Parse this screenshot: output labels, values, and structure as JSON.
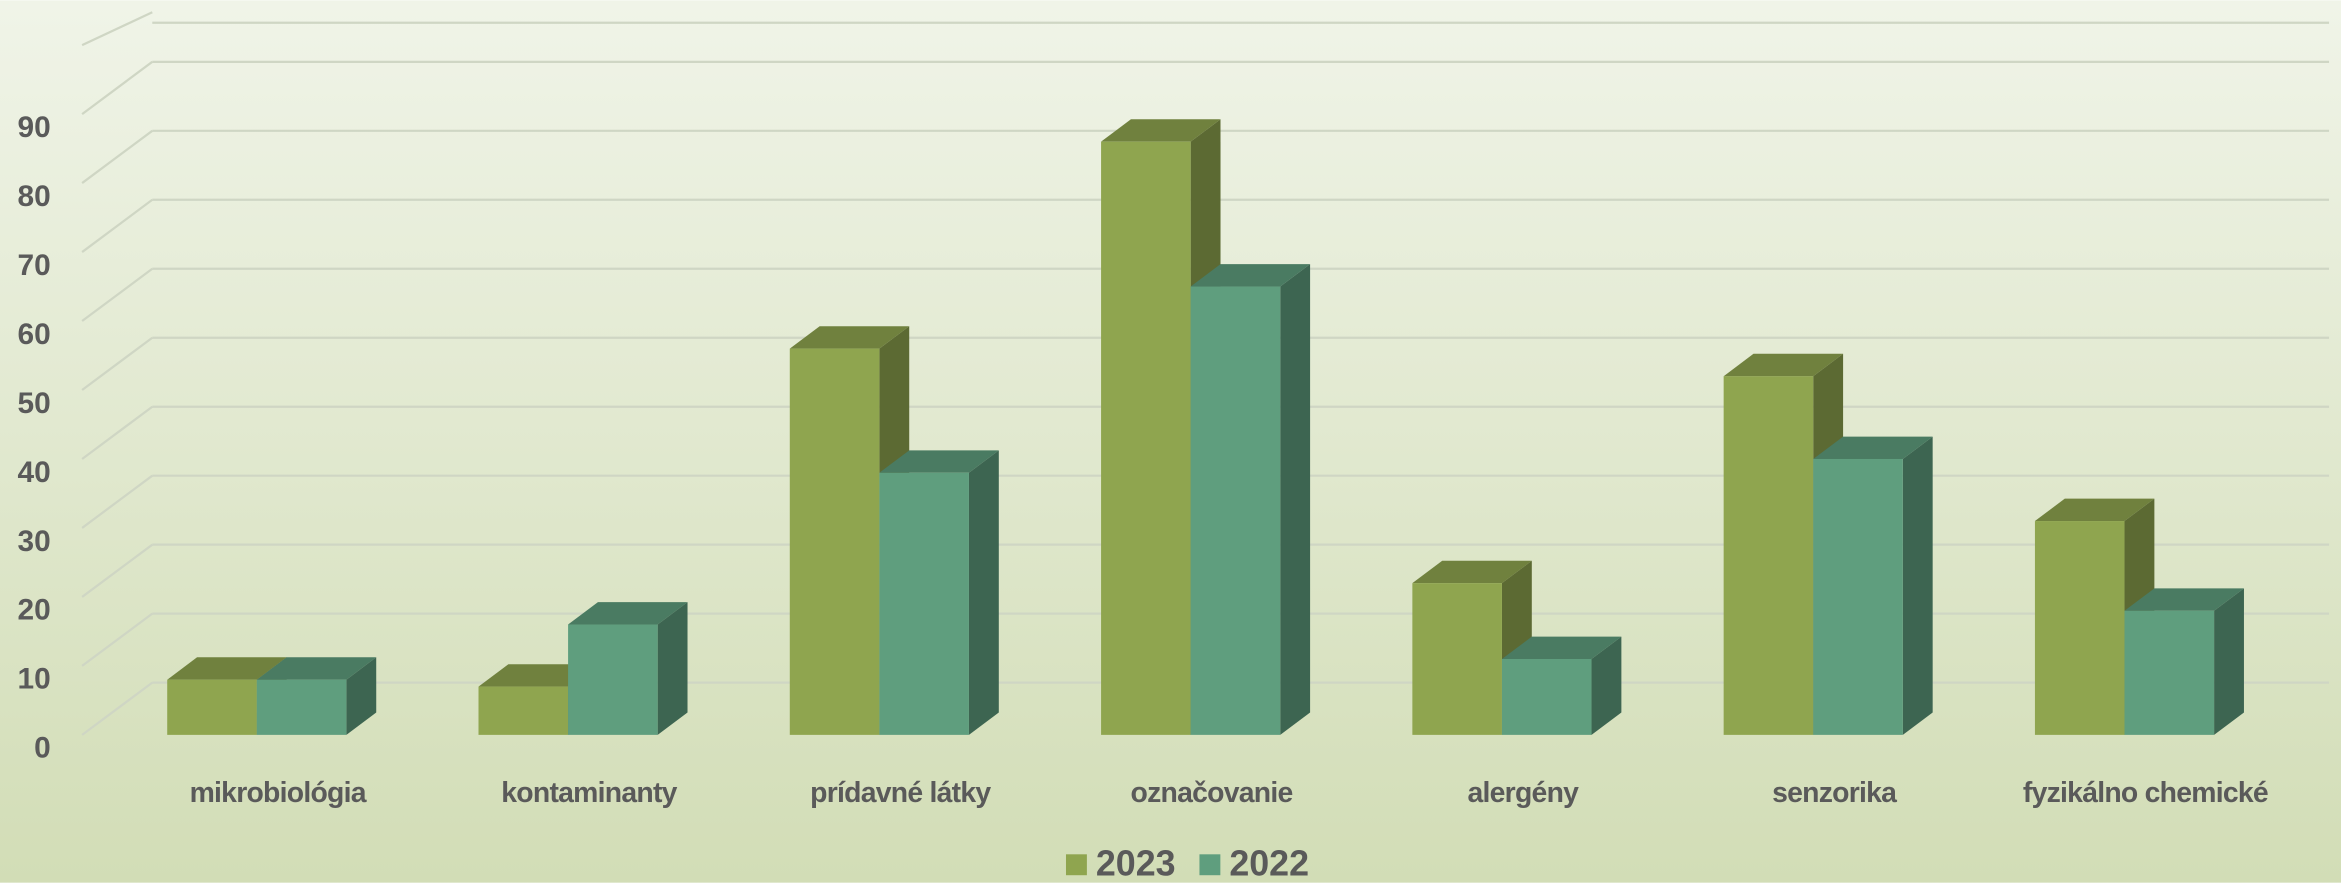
{
  "chart_data": {
    "type": "bar3d",
    "categories": [
      "mikrobiológia",
      "kontaminanty",
      "prídavné látky",
      "označovanie",
      "alergény",
      "senzorika",
      "fyzikálno chemické"
    ],
    "series": [
      {
        "name": "2023",
        "color": "#8fa54f",
        "values": [
          8,
          7,
          56,
          86,
          22,
          52,
          31
        ]
      },
      {
        "name": "2022",
        "color": "#5f9e7e",
        "values": [
          8,
          16,
          38,
          65,
          11,
          40,
          18
        ]
      }
    ],
    "ylim": [
      0,
      100
    ],
    "yticks": [
      0,
      10,
      20,
      30,
      40,
      50,
      60,
      70,
      80,
      90
    ],
    "grid": true,
    "legend": "bottom"
  }
}
